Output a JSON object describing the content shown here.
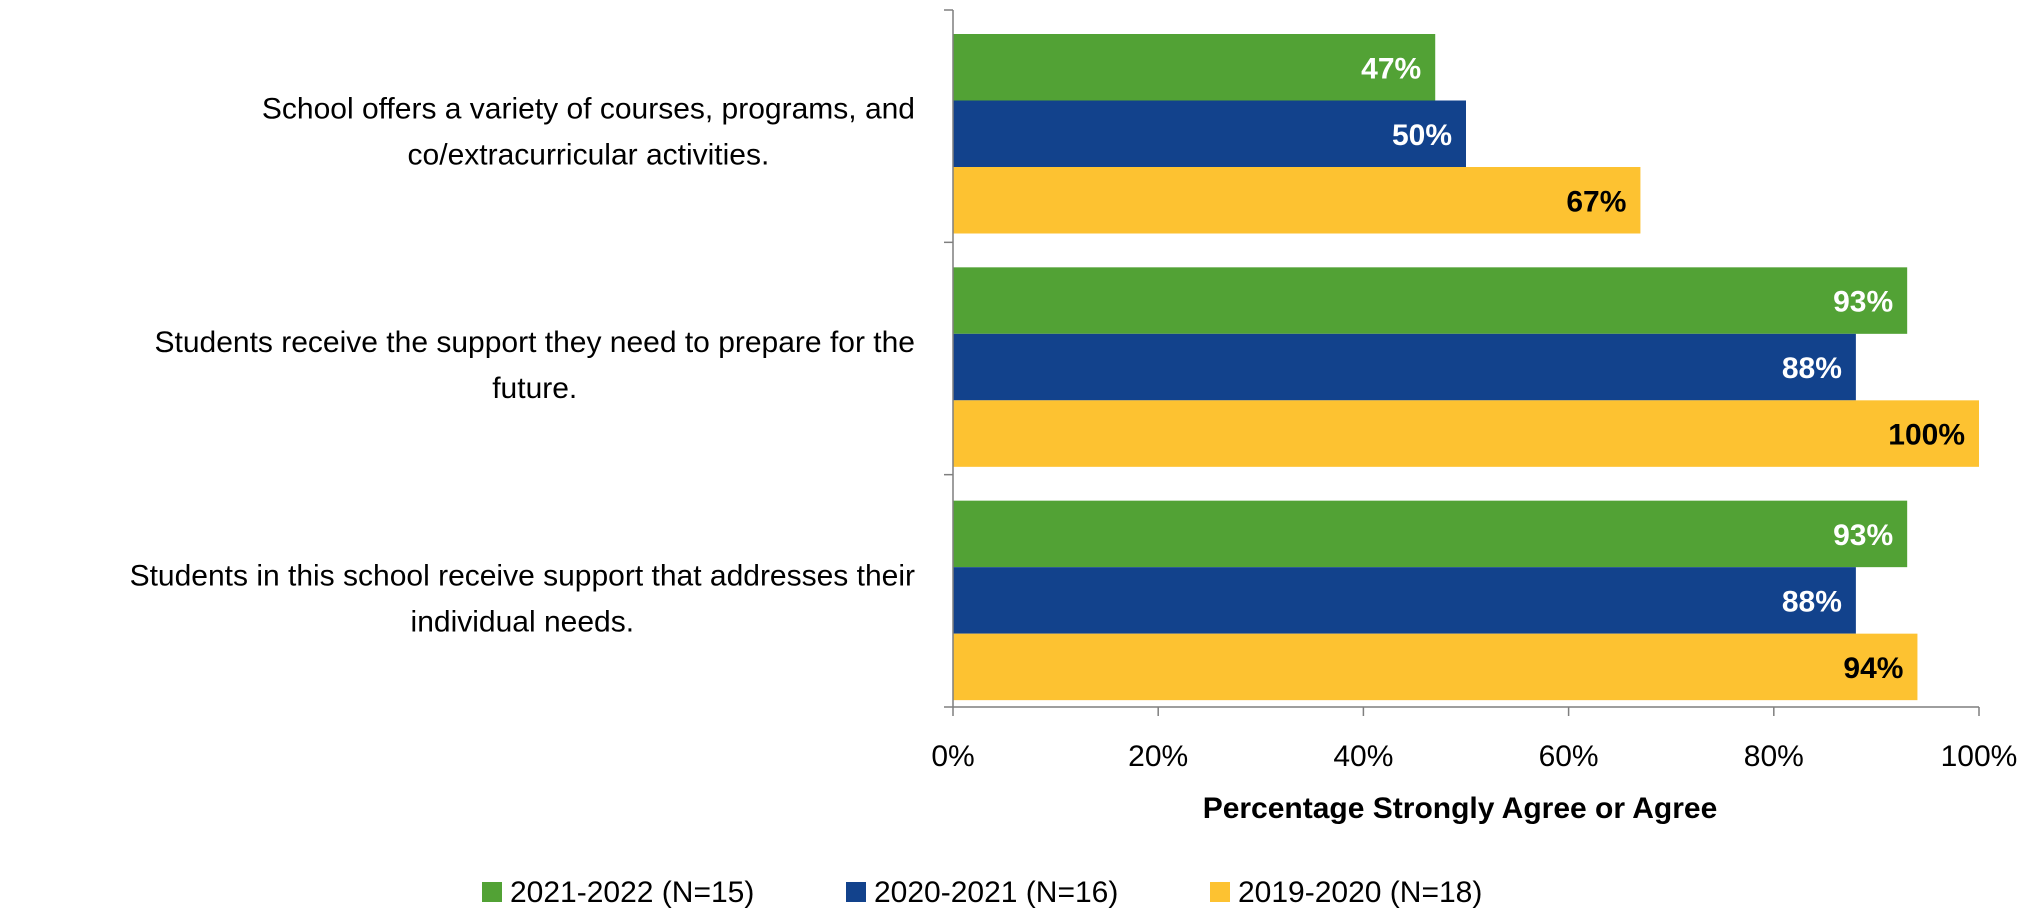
{
  "chart_data": {
    "type": "bar",
    "orientation": "horizontal",
    "categories": [
      "School offers a variety of courses, programs, and co/extracurricular activities.",
      "Students receive the support they need to prepare for the future.",
      "Students in this school receive support that addresses their individual needs."
    ],
    "category_lines": [
      [
        "School offers a variety of courses, programs, and",
        "co/extracurricular activities."
      ],
      [
        "Students receive the support they need to prepare for the",
        "future."
      ],
      [
        "Students in this school receive support that addresses their",
        "individual needs."
      ]
    ],
    "series": [
      {
        "name": "2021-2022 (N=15)",
        "color": "#52a235",
        "label_color": "#ffffff",
        "values": [
          47,
          93,
          93
        ]
      },
      {
        "name": "2020-2021 (N=16)",
        "color": "#12428c",
        "label_color": "#ffffff",
        "values": [
          50,
          88,
          88
        ]
      },
      {
        "name": "2019-2020 (N=18)",
        "color": "#fdc231",
        "label_color": "#000000",
        "values": [
          67,
          100,
          94
        ]
      }
    ],
    "value_suffix": "%",
    "xlabel": "Percentage Strongly Agree or Agree",
    "xlim": [
      0,
      100
    ],
    "xticks": [
      "0%",
      "20%",
      "40%",
      "60%",
      "80%",
      "100%"
    ],
    "grid": false,
    "legend_position": "bottom"
  }
}
